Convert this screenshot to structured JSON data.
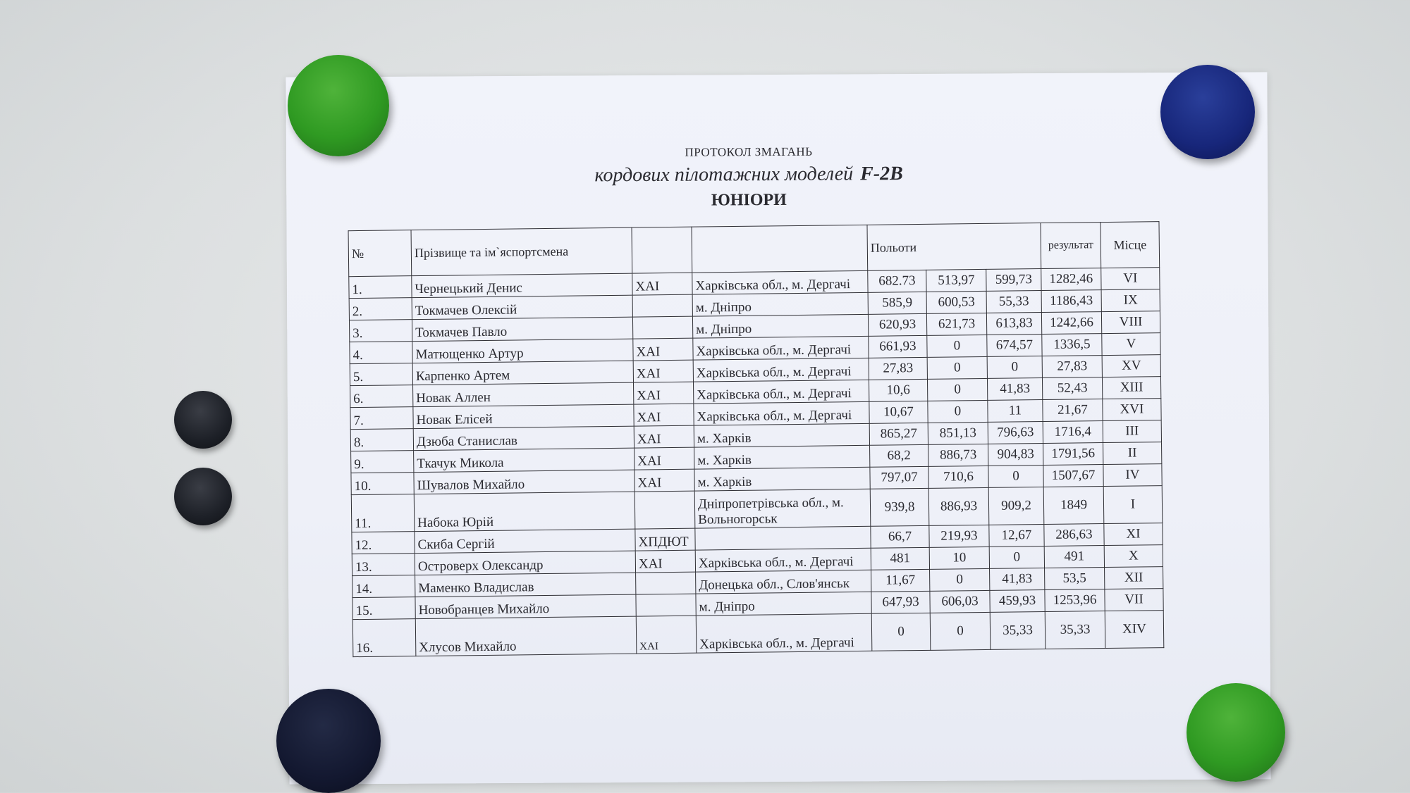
{
  "document": {
    "title_line1": "ПРОТОКОЛ ЗМАГАНЬ",
    "title_line2": "кордових пілотажних моделей",
    "title_class": "F-2B",
    "title_line3": "ЮНІОРИ"
  },
  "table": {
    "headers": {
      "no": "№",
      "name": "Прізвище та ім`яспортсмена",
      "club": "",
      "location": "",
      "flights": "Польоти",
      "result": "результат",
      "place": "Місце"
    },
    "rows": [
      {
        "no": "1.",
        "name": "Чернецький Денис",
        "club": "ХАІ",
        "location": "Харківська обл., м. Дергачі",
        "f1": "682.73",
        "f2": "513,97",
        "f3": "599,73",
        "result": "1282,46",
        "place": "VI"
      },
      {
        "no": "2.",
        "name": "Токмачев Олексій",
        "club": "",
        "location": "м. Дніпро",
        "f1": "585,9",
        "f2": "600,53",
        "f3": "55,33",
        "result": "1186,43",
        "place": "IX"
      },
      {
        "no": "3.",
        "name": "Токмачев Павло",
        "club": "",
        "location": "м. Дніпро",
        "f1": "620,93",
        "f2": "621,73",
        "f3": "613,83",
        "result": "1242,66",
        "place": "VIII"
      },
      {
        "no": "4.",
        "name": "Матющенко Артур",
        "club": "ХАІ",
        "location": "Харківська обл., м. Дергачі",
        "f1": "661,93",
        "f2": "0",
        "f3": "674,57",
        "result": "1336,5",
        "place": "V"
      },
      {
        "no": "5.",
        "name": "Карпенко Артем",
        "club": "ХАІ",
        "location": "Харківська обл., м. Дергачі",
        "f1": "27,83",
        "f2": "0",
        "f3": "0",
        "result": "27,83",
        "place": "XV"
      },
      {
        "no": "6.",
        "name": "Новак  Аллен",
        "club": "ХАІ",
        "location": "Харківська обл., м. Дергачі",
        "f1": "10,6",
        "f2": "0",
        "f3": "41,83",
        "result": "52,43",
        "place": "XIII"
      },
      {
        "no": "7.",
        "name": "Новак Елісей",
        "club": "ХАІ",
        "location": "Харківська обл., м. Дергачі",
        "f1": "10,67",
        "f2": "0",
        "f3": "11",
        "result": "21,67",
        "place": "XVI"
      },
      {
        "no": "8.",
        "name": "Дзюба Станислав",
        "club": "ХАІ",
        "location": "м. Харків",
        "f1": "865,27",
        "f2": "851,13",
        "f3": "796,63",
        "result": "1716,4",
        "place": "III"
      },
      {
        "no": "9.",
        "name": "Ткачук Микола",
        "club": "ХАІ",
        "location": "м. Харків",
        "f1": "68,2",
        "f2": "886,73",
        "f3": "904,83",
        "result": "1791,56",
        "place": "II"
      },
      {
        "no": "10.",
        "name": "Шувалов Михайло",
        "club": "ХАІ",
        "location": "м. Харків",
        "f1": "797,07",
        "f2": "710,6",
        "f3": "0",
        "result": "1507,67",
        "place": "IV"
      },
      {
        "no": "11.",
        "name": "Набока Юрій",
        "club": "",
        "location": "Дніпропетрівська обл., м. Вольногорськ",
        "f1": "939,8",
        "f2": "886,93",
        "f3": "909,2",
        "result": "1849",
        "place": "I"
      },
      {
        "no": "12.",
        "name": "Скиба Сергій",
        "club": "ХПДЮТ",
        "location": "",
        "f1": "66,7",
        "f2": "219,93",
        "f3": "12,67",
        "result": "286,63",
        "place": "XI"
      },
      {
        "no": "13.",
        "name": "Островерх Олександр",
        "club": "ХАІ",
        "location": "Харківська обл., м. Дергачі",
        "f1": "481",
        "f2": "10",
        "f3": "0",
        "result": "491",
        "place": "X"
      },
      {
        "no": "14.",
        "name": "Маменко Владислав",
        "club": "",
        "location": "Донецька обл., Слов'янськ",
        "f1": "11,67",
        "f2": "0",
        "f3": "41,83",
        "result": "53,5",
        "place": "XII"
      },
      {
        "no": "15.",
        "name": "Новобранцев Михайло",
        "club": "",
        "location": "м. Дніпро",
        "f1": "647,93",
        "f2": "606,03",
        "f3": "459,93",
        "result": "1253,96",
        "place": "VII"
      },
      {
        "no": "16.",
        "name": "Хлусов Михайло",
        "club": "ХАІ",
        "location": "Харківська обл., м. Дергачі",
        "f1": "0",
        "f2": "0",
        "f3": "35,33",
        "result": "35,33",
        "place": "XIV"
      }
    ]
  },
  "magnets": {
    "colors": {
      "green": "#2f9a22",
      "blue": "#17267a",
      "dark": "#1d2027",
      "navy": "#131830"
    }
  }
}
